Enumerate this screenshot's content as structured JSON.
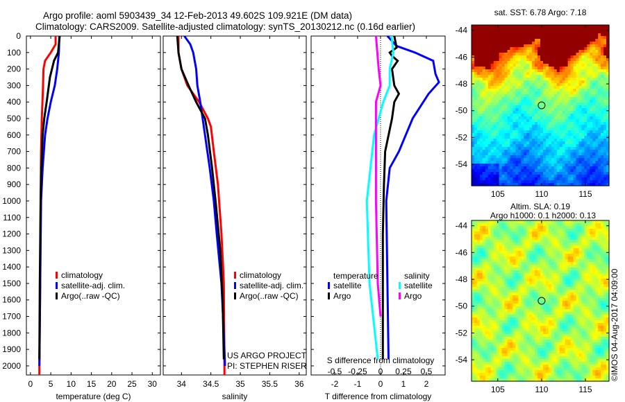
{
  "title": {
    "line1": "Argo profile: aoml 5903439_34 12-Feb-2013 49.602S 109.921E (DM data)",
    "line2": "Climatology: CARS2009. Satellite-adjusted climatology: synTS_20130212.nc (0.16d earlier)"
  },
  "colors": {
    "climatology": "#ff0000",
    "satellite": "#0000ff",
    "argo": "#000000",
    "sal_satellite": "#00ffff",
    "sal_argo": "#ff00ff"
  },
  "credit": "©IMOS 04-Aug-2017 04:09:00",
  "project": {
    "line1": "US ARGO PROJECT",
    "line2": "PI: STEPHEN RISER"
  },
  "chart_data": [
    {
      "type": "line",
      "name": "temperature-profile",
      "xlabel": "temperature (deg C)",
      "ylabel": "",
      "xlim": [
        -1,
        32
      ],
      "ylim": [
        2055,
        0
      ],
      "xticks": [
        "0",
        "5",
        "10",
        "15",
        "20",
        "25",
        "30"
      ],
      "xtick_values": [
        0,
        5,
        10,
        15,
        20,
        25,
        30
      ],
      "yticks": [
        "0",
        "100",
        "200",
        "300",
        "400",
        "500",
        "600",
        "700",
        "800",
        "900",
        "1000",
        "1100",
        "1200",
        "1300",
        "1400",
        "1500",
        "1600",
        "1700",
        "1800",
        "1900",
        "2000"
      ],
      "legend": [
        "climatology",
        "satellite-adj. clim.",
        "Argo(..raw -QC)"
      ],
      "series": [
        {
          "name": "climatology",
          "color": "#ff0000",
          "points": [
            [
              6.2,
              0
            ],
            [
              6.2,
              50
            ],
            [
              5,
              100
            ],
            [
              3.6,
              150
            ],
            [
              3.2,
              200
            ],
            [
              3.1,
              300
            ],
            [
              2.8,
              500
            ],
            [
              2.6,
              700
            ],
            [
              2.5,
              1000
            ],
            [
              2.4,
              1500
            ],
            [
              2.2,
              2000
            ],
            [
              2.2,
              2055
            ]
          ]
        },
        {
          "name": "satellite-adj. clim.",
          "color": "#0000ff",
          "points": [
            [
              7.1,
              0
            ],
            [
              7.0,
              100
            ],
            [
              6.6,
              200
            ],
            [
              6.0,
              300
            ],
            [
              5.0,
              400
            ],
            [
              4.2,
              500
            ],
            [
              3.6,
              600
            ],
            [
              3.0,
              800
            ],
            [
              2.6,
              1000
            ],
            [
              2.4,
              1500
            ],
            [
              2.2,
              2000
            ]
          ]
        },
        {
          "name": "Argo",
          "color": "#000000",
          "points": [
            [
              7.2,
              0
            ],
            [
              6.8,
              100
            ],
            [
              5.8,
              150
            ],
            [
              4.8,
              250
            ],
            [
              4.0,
              400
            ],
            [
              3.4,
              500
            ],
            [
              3.0,
              600
            ],
            [
              2.7,
              800
            ],
            [
              2.5,
              1000
            ],
            [
              2.3,
              1500
            ],
            [
              2.2,
              1960
            ]
          ]
        }
      ]
    },
    {
      "type": "line",
      "name": "salinity-profile",
      "xlabel": "salinity",
      "xlim": [
        33.69,
        36.12
      ],
      "ylim": [
        2055,
        0
      ],
      "xticks": [
        "34",
        "34.5",
        "35",
        "35.5",
        "36"
      ],
      "xtick_values": [
        34,
        34.5,
        35,
        35.5,
        36
      ],
      "legend": [
        "climatology",
        "satellite-adj. clim.",
        "Argo(..raw -QC)"
      ],
      "series": [
        {
          "name": "climatology",
          "color": "#ff0000",
          "points": [
            [
              33.95,
              0
            ],
            [
              33.95,
              100
            ],
            [
              34.0,
              200
            ],
            [
              34.1,
              300
            ],
            [
              34.3,
              400
            ],
            [
              34.45,
              500
            ],
            [
              34.5,
              550
            ],
            [
              34.55,
              700
            ],
            [
              34.62,
              900
            ],
            [
              34.68,
              1200
            ],
            [
              34.72,
              1500
            ],
            [
              34.73,
              2000
            ],
            [
              34.73,
              2055
            ]
          ]
        },
        {
          "name": "satellite-adj. clim.",
          "color": "#0000ff",
          "points": [
            [
              34.05,
              0
            ],
            [
              34.15,
              50
            ],
            [
              34.2,
              100
            ],
            [
              34.25,
              200
            ],
            [
              34.27,
              300
            ],
            [
              34.32,
              400
            ],
            [
              34.4,
              600
            ],
            [
              34.48,
              800
            ],
            [
              34.55,
              1000
            ],
            [
              34.6,
              1200
            ],
            [
              34.68,
              1500
            ],
            [
              34.72,
              1800
            ],
            [
              34.74,
              2000
            ]
          ]
        },
        {
          "name": "Argo",
          "color": "#000000",
          "points": [
            [
              33.93,
              0
            ],
            [
              33.95,
              100
            ],
            [
              34.0,
              200
            ],
            [
              34.12,
              300
            ],
            [
              34.25,
              400
            ],
            [
              34.4,
              500
            ],
            [
              34.45,
              600
            ],
            [
              34.52,
              800
            ],
            [
              34.58,
              1000
            ],
            [
              34.66,
              1300
            ],
            [
              34.7,
              1600
            ],
            [
              34.72,
              1960
            ]
          ]
        }
      ]
    },
    {
      "type": "line",
      "name": "difference-profile",
      "xlabel": "T difference from climatology",
      "xlabel2": "S difference from climatology",
      "xlim": [
        -3.03,
        2.82
      ],
      "ylim": [
        2055,
        0
      ],
      "xticks": [
        "-2",
        "-1",
        "0",
        "1",
        "2"
      ],
      "xtick_values": [
        -2,
        -1,
        0,
        1,
        2
      ],
      "xticks2": [
        "-0.5",
        "-0.25",
        "0",
        "0.25",
        "0.5"
      ],
      "xtick2_values": [
        -0.5,
        -0.25,
        0,
        0.25,
        0.5
      ],
      "legend": {
        "temperature": "temperature",
        "salinity": "salinity",
        "satellite": "satellite",
        "argo": "Argo"
      },
      "series": [
        {
          "name": "T satellite",
          "axis": "T",
          "color": "#0000ff",
          "points": [
            [
              0.3,
              0
            ],
            [
              0.7,
              60
            ],
            [
              1.5,
              100
            ],
            [
              2.3,
              150
            ],
            [
              2.4,
              230
            ],
            [
              2.55,
              280
            ],
            [
              2.1,
              350
            ],
            [
              1.4,
              500
            ],
            [
              0.8,
              700
            ],
            [
              0.4,
              800
            ],
            [
              0.25,
              1000
            ],
            [
              0.3,
              1500
            ],
            [
              0.35,
              1960
            ]
          ]
        },
        {
          "name": "T Argo",
          "axis": "T",
          "color": "#000000",
          "points": [
            [
              0.6,
              0
            ],
            [
              0.7,
              70
            ],
            [
              0.4,
              100
            ],
            [
              0.5,
              120
            ],
            [
              0.75,
              150
            ],
            [
              0.5,
              200
            ],
            [
              0.6,
              300
            ],
            [
              0.8,
              350
            ],
            [
              0.6,
              400
            ],
            [
              0.5,
              500
            ],
            [
              0.2,
              700
            ],
            [
              0.15,
              900
            ],
            [
              0.1,
              1200
            ],
            [
              0.1,
              1960
            ]
          ]
        },
        {
          "name": "S satellite",
          "axis": "S",
          "color": "#00ffff",
          "points": [
            [
              0.12,
              0
            ],
            [
              0.14,
              100
            ],
            [
              0.1,
              200
            ],
            [
              0.1,
              300
            ],
            [
              0.03,
              400
            ],
            [
              -0.07,
              600
            ],
            [
              -0.15,
              1000
            ],
            [
              -0.12,
              1500
            ],
            [
              -0.03,
              1960
            ]
          ]
        },
        {
          "name": "S Argo",
          "axis": "S",
          "color": "#ff00ff",
          "points": [
            [
              -0.05,
              0
            ],
            [
              -0.02,
              200
            ],
            [
              0,
              300
            ],
            [
              -0.05,
              400
            ],
            [
              -0.05,
              600
            ],
            [
              -0.05,
              1000
            ],
            [
              -0.03,
              1500
            ],
            [
              0,
              1700
            ]
          ]
        }
      ]
    },
    {
      "type": "heatmap",
      "name": "sst-map",
      "title": "sat. SST: 6.78 Argo: 7.18",
      "xlim": [
        102,
        117.7
      ],
      "ylim": [
        -55.6,
        -43.6
      ],
      "xticks": [
        "105",
        "110",
        "115"
      ],
      "xtick_values": [
        105,
        110,
        115
      ],
      "yticks": [
        "-44",
        "-46",
        "-48",
        "-50",
        "-52",
        "-54"
      ],
      "ytick_values": [
        -44,
        -46,
        -48,
        -50,
        -52,
        -54
      ],
      "marker": [
        110,
        -49.6
      ]
    },
    {
      "type": "heatmap",
      "name": "sla-map",
      "title": "Altim. SLA: 0.19",
      "subtitle": "Argo h1000: 0.1 h2000: 0.13",
      "xlim": [
        102,
        117.7
      ],
      "ylim": [
        -55.6,
        -43.6
      ],
      "xticks": [
        "105",
        "110",
        "115"
      ],
      "xtick_values": [
        105,
        110,
        115
      ],
      "yticks": [
        "-44",
        "-46",
        "-48",
        "-50",
        "-52",
        "-54"
      ],
      "ytick_values": [
        -44,
        -46,
        -48,
        -50,
        -52,
        -54
      ],
      "marker": [
        110,
        -49.6
      ]
    }
  ]
}
